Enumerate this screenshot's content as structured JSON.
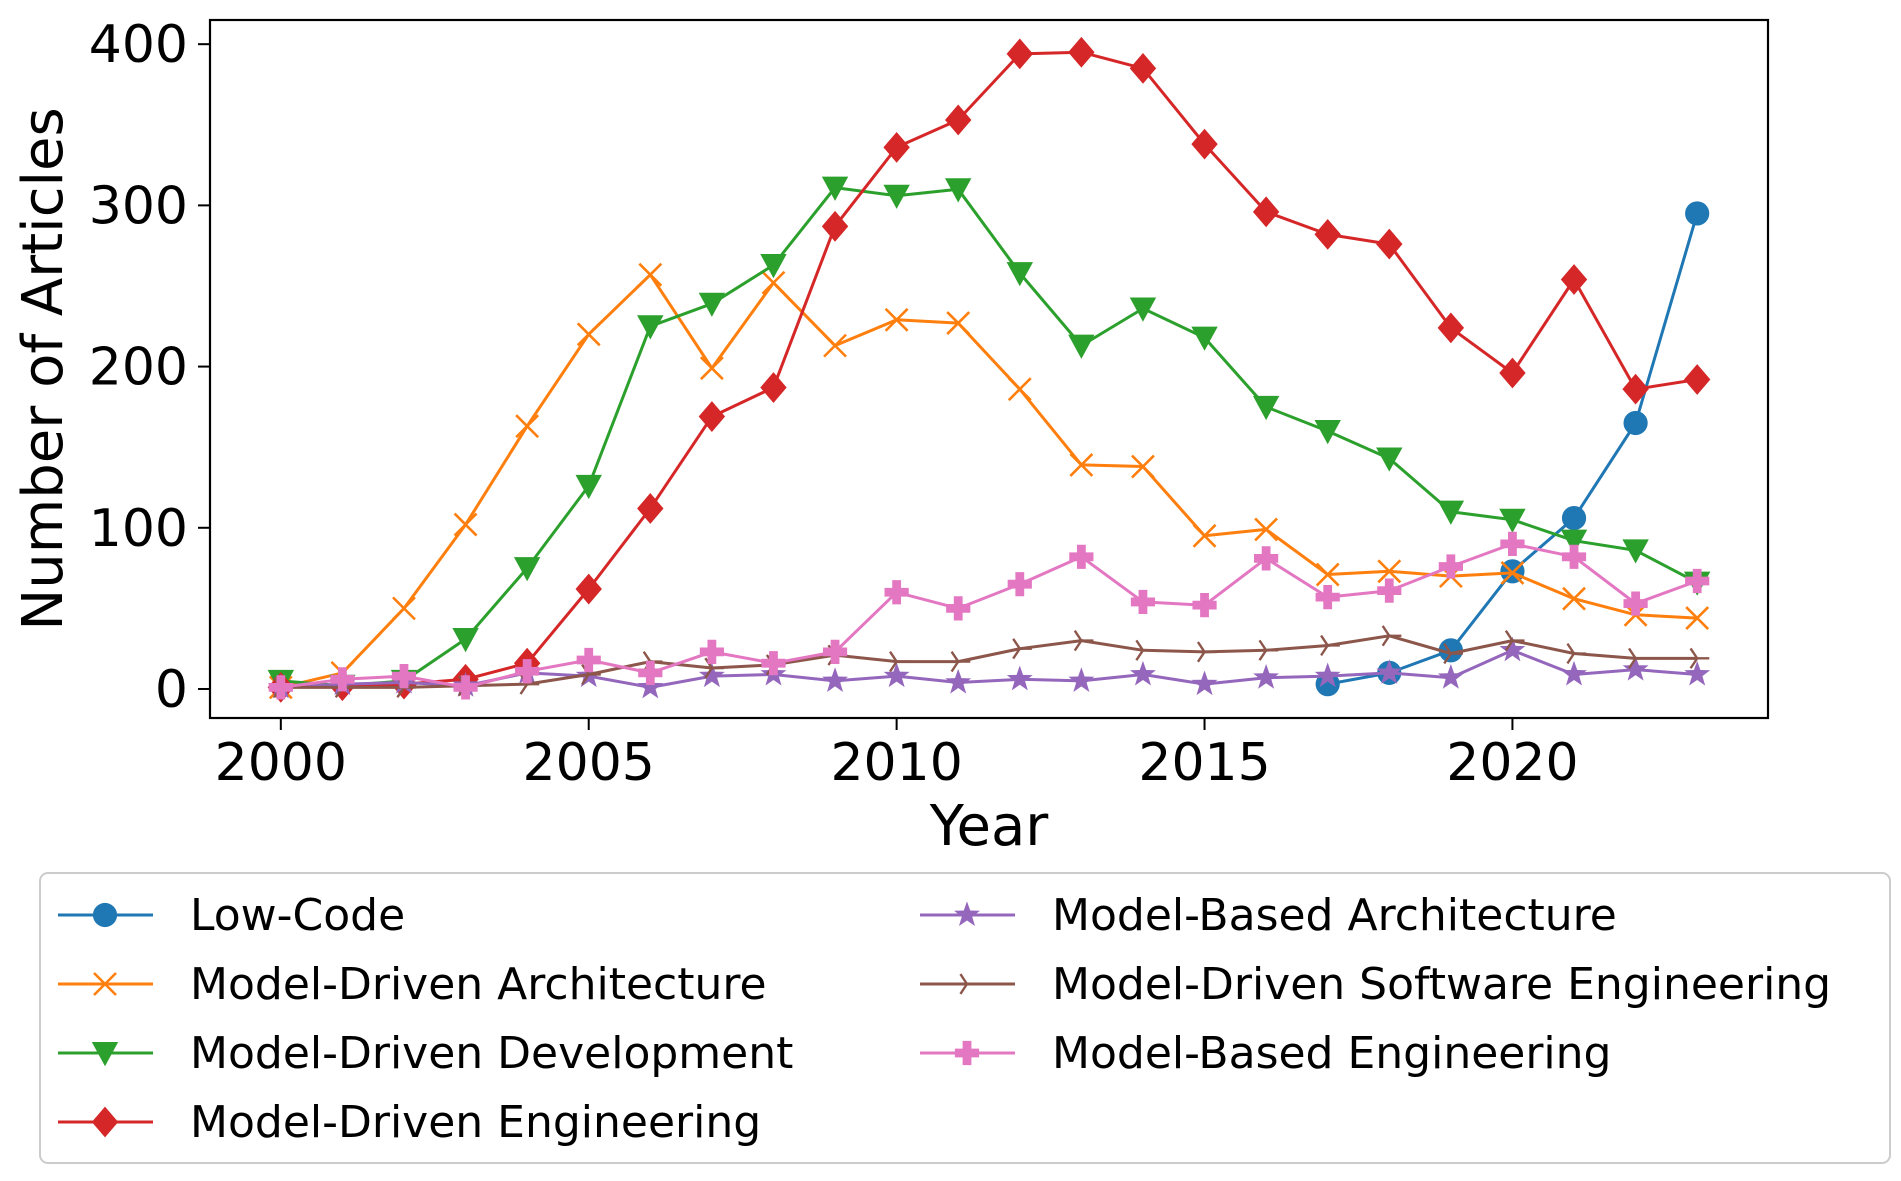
{
  "chart_data": {
    "type": "line",
    "title": "",
    "xlabel": "Year",
    "ylabel": "Number of Articles",
    "xlim": [
      1998.85,
      2024.15
    ],
    "ylim": [
      -18,
      415
    ],
    "xticks": [
      2000,
      2005,
      2010,
      2015,
      2020
    ],
    "yticks": [
      0,
      100,
      200,
      300,
      400
    ],
    "grid": false,
    "legend_position": "bottom",
    "legend_columns": 2,
    "series": [
      {
        "name": "Low-Code",
        "color": "#1f77b4",
        "marker": "circle",
        "x": [
          2017,
          2018,
          2019,
          2020,
          2021,
          2022,
          2023
        ],
        "values": [
          3,
          10,
          24,
          73,
          106,
          165,
          295
        ]
      },
      {
        "name": "Model-Driven Architecture",
        "color": "#ff7f0e",
        "marker": "x",
        "x": [
          2000,
          2001,
          2002,
          2003,
          2004,
          2005,
          2006,
          2007,
          2008,
          2009,
          2010,
          2011,
          2012,
          2013,
          2014,
          2015,
          2016,
          2017,
          2018,
          2019,
          2020,
          2021,
          2022,
          2023
        ],
        "values": [
          1,
          10,
          50,
          102,
          163,
          220,
          257,
          199,
          252,
          213,
          229,
          227,
          186,
          139,
          138,
          95,
          99,
          71,
          73,
          70,
          72,
          56,
          46,
          44
        ]
      },
      {
        "name": "Model-Driven Development",
        "color": "#2ca02c",
        "marker": "triangle-down",
        "x": [
          2000,
          2001,
          2002,
          2003,
          2004,
          2005,
          2006,
          2007,
          2008,
          2009,
          2010,
          2011,
          2012,
          2013,
          2014,
          2015,
          2016,
          2017,
          2018,
          2019,
          2020,
          2021,
          2022,
          2023
        ],
        "values": [
          5,
          2,
          5,
          31,
          75,
          126,
          225,
          239,
          263,
          311,
          306,
          310,
          258,
          213,
          236,
          218,
          175,
          160,
          143,
          110,
          105,
          92,
          86,
          66
        ]
      },
      {
        "name": "Model-Driven Engineering",
        "color": "#d62728",
        "marker": "diamond",
        "x": [
          2000,
          2001,
          2002,
          2003,
          2004,
          2005,
          2006,
          2007,
          2008,
          2009,
          2010,
          2011,
          2012,
          2013,
          2014,
          2015,
          2016,
          2017,
          2018,
          2019,
          2020,
          2021,
          2022,
          2023
        ],
        "values": [
          1,
          2,
          3,
          6,
          16,
          62,
          112,
          169,
          187,
          287,
          336,
          353,
          394,
          395,
          385,
          338,
          296,
          282,
          276,
          224,
          196,
          254,
          186,
          192
        ]
      },
      {
        "name": "Model-Based Architecture",
        "color": "#9467bd",
        "marker": "star",
        "x": [
          2000,
          2001,
          2002,
          2003,
          2004,
          2005,
          2006,
          2007,
          2008,
          2009,
          2010,
          2011,
          2012,
          2013,
          2014,
          2015,
          2016,
          2017,
          2018,
          2019,
          2020,
          2021,
          2022,
          2023
        ],
        "values": [
          1,
          3,
          4,
          2,
          10,
          8,
          1,
          8,
          9,
          5,
          8,
          4,
          6,
          5,
          9,
          3,
          7,
          8,
          10,
          7,
          24,
          9,
          12,
          9
        ]
      },
      {
        "name": "Model-Driven Software Engineering",
        "color": "#8c564b",
        "marker": "tri-right",
        "x": [
          2000,
          2001,
          2002,
          2003,
          2004,
          2005,
          2006,
          2007,
          2008,
          2009,
          2010,
          2011,
          2012,
          2013,
          2014,
          2015,
          2016,
          2017,
          2018,
          2019,
          2020,
          2021,
          2022,
          2023
        ],
        "values": [
          1,
          1,
          1,
          2,
          3,
          9,
          17,
          13,
          15,
          21,
          17,
          17,
          25,
          30,
          24,
          23,
          24,
          27,
          33,
          22,
          30,
          22,
          19,
          19
        ]
      },
      {
        "name": "Model-Based Engineering",
        "color": "#e377c2",
        "marker": "plus-filled",
        "x": [
          2000,
          2001,
          2002,
          2003,
          2004,
          2005,
          2006,
          2007,
          2008,
          2009,
          2010,
          2011,
          2012,
          2013,
          2014,
          2015,
          2016,
          2017,
          2018,
          2019,
          2020,
          2021,
          2022,
          2023
        ],
        "values": [
          1,
          6,
          8,
          1,
          11,
          18,
          10,
          23,
          16,
          23,
          60,
          50,
          65,
          82,
          54,
          52,
          81,
          57,
          61,
          76,
          90,
          82,
          53,
          67
        ]
      }
    ]
  }
}
